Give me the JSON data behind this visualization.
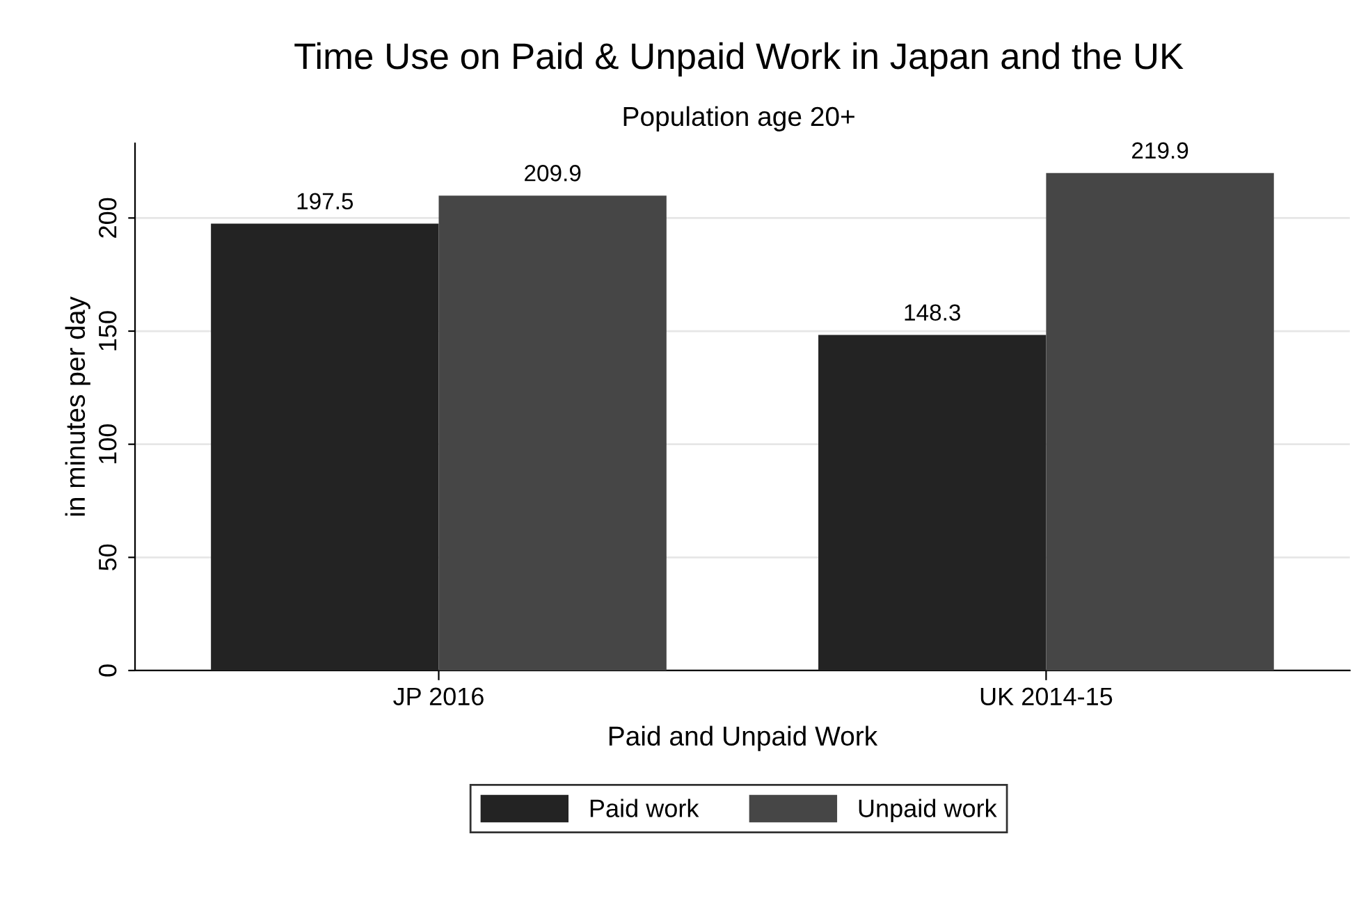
{
  "chart_data": {
    "type": "bar",
    "title": "Time Use on Paid & Unpaid Work in Japan and the UK",
    "subtitle": "Population age 20+",
    "xlabel": "Paid and Unpaid Work",
    "ylabel": "in minutes per day",
    "categories": [
      "JP 2016",
      "UK 2014-15"
    ],
    "series": [
      {
        "name": "Paid work",
        "color": "#232323",
        "values": [
          197.5,
          148.3
        ]
      },
      {
        "name": "Unpaid work",
        "color": "#464646",
        "values": [
          209.9,
          219.9
        ]
      }
    ],
    "ylim": [
      0,
      233
    ],
    "yticks": [
      0,
      50,
      100,
      150,
      200
    ],
    "grid": "y",
    "data_labels": true,
    "legend": "bottom"
  }
}
